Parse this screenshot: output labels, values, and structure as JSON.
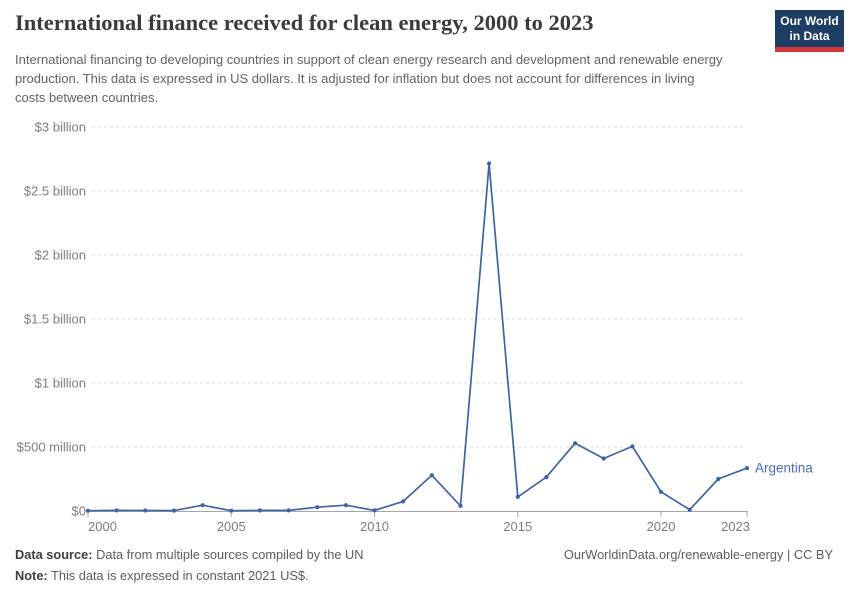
{
  "header": {
    "title": "International finance received for clean energy, 2000 to 2023",
    "subtitle": "International financing to developing countries in support of clean energy research and development and renewable energy production. This data is expressed in US dollars. It is adjusted for inflation but does not account for differences in living costs between countries.",
    "logo": {
      "line1": "Our World",
      "line2": "in Data"
    }
  },
  "chart_data": {
    "type": "line",
    "title": "International finance received for clean energy, 2000 to 2023",
    "x": [
      2000,
      2001,
      2002,
      2003,
      2004,
      2005,
      2006,
      2007,
      2008,
      2009,
      2010,
      2011,
      2012,
      2013,
      2014,
      2015,
      2016,
      2017,
      2018,
      2019,
      2020,
      2021,
      2022,
      2023
    ],
    "series": [
      {
        "name": "Argentina",
        "values": [
          2,
          5,
          4,
          3,
          45,
          2,
          5,
          5,
          30,
          45,
          5,
          75,
          280,
          40,
          2715,
          110,
          265,
          530,
          410,
          505,
          150,
          10,
          250,
          335
        ]
      }
    ],
    "values_unit": "million constant 2021 US$",
    "ylim": [
      0,
      3000
    ],
    "yticks": [
      {
        "value": 0,
        "label": "$0"
      },
      {
        "value": 500,
        "label": "$500 million"
      },
      {
        "value": 1000,
        "label": "$1 billion"
      },
      {
        "value": 1500,
        "label": "$1.5 billion"
      },
      {
        "value": 2000,
        "label": "$2 billion"
      },
      {
        "value": 2500,
        "label": "$2.5 billion"
      },
      {
        "value": 3000,
        "label": "$3 billion"
      }
    ],
    "xticks": [
      2000,
      2005,
      2010,
      2015,
      2020,
      2023
    ],
    "grid": "horizontal-dashed",
    "legend": "end-of-line-label"
  },
  "colors": {
    "line": "#3f64a5",
    "series_label": "#4a6db3",
    "gridline": "#dcdcdc",
    "axis": "#a6a6a6",
    "axis_label": "#7e7e7e",
    "logo_bg": "#1d3d63",
    "logo_red": "#d6373b"
  },
  "footer": {
    "source_label": "Data source:",
    "source_text": " Data from multiple sources compiled by the UN",
    "note_label": "Note:",
    "note_text": " This data is expressed in constant 2021 US$.",
    "right_text": "OurWorldinData.org/renewable-energy | CC BY"
  }
}
